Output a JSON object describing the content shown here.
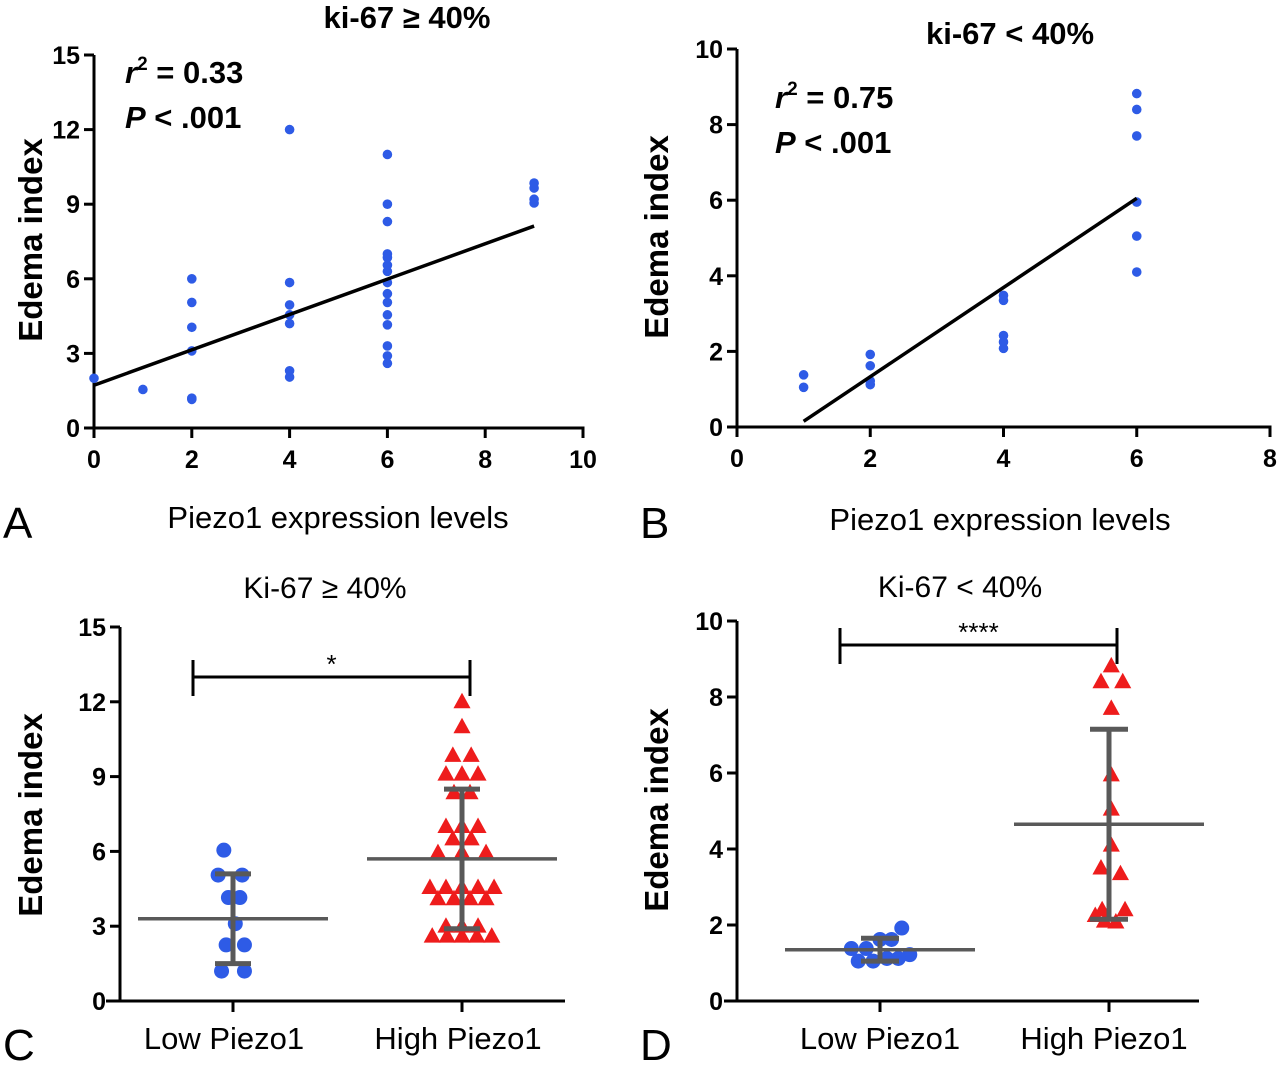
{
  "colors": {
    "blue": "#2e5be6",
    "red": "#ee1c1c",
    "axis": "#000000",
    "errbar": "#595959"
  },
  "chart_data": [
    {
      "panel": "A",
      "type": "scatter",
      "title": "ki-67 ≥ 40%",
      "xlabel": "Piezo1 expression levels",
      "ylabel": "Edema index",
      "xlim": [
        0,
        10
      ],
      "ylim": [
        0,
        15
      ],
      "xticks": [
        "0",
        "2",
        "4",
        "6",
        "8",
        "10"
      ],
      "yticks": [
        "0",
        "3",
        "6",
        "9",
        "12",
        "15"
      ],
      "stats": {
        "r2_label": "r",
        "r2_sup": "2",
        "r2_value": " = 0.33",
        "p_label": "P",
        "p_value": " < .001"
      },
      "points": [
        [
          0,
          2.0
        ],
        [
          1,
          1.55
        ],
        [
          2,
          1.15
        ],
        [
          2,
          1.2
        ],
        [
          2,
          3.1
        ],
        [
          2,
          4.05
        ],
        [
          2,
          5.05
        ],
        [
          2,
          6.0
        ],
        [
          4,
          2.05
        ],
        [
          4,
          2.3
        ],
        [
          4,
          4.2
        ],
        [
          4,
          4.55
        ],
        [
          4,
          4.95
        ],
        [
          4,
          5.85
        ],
        [
          4,
          12.0
        ],
        [
          6,
          2.6
        ],
        [
          6,
          2.9
        ],
        [
          6,
          3.3
        ],
        [
          6,
          4.15
        ],
        [
          6,
          4.55
        ],
        [
          6,
          5.05
        ],
        [
          6,
          5.4
        ],
        [
          6,
          5.85
        ],
        [
          6,
          6.3
        ],
        [
          6,
          6.55
        ],
        [
          6,
          6.85
        ],
        [
          6,
          7.0
        ],
        [
          6,
          8.3
        ],
        [
          6,
          9.0
        ],
        [
          6,
          11.0
        ],
        [
          9,
          9.05
        ],
        [
          9,
          9.2
        ],
        [
          9,
          9.65
        ],
        [
          9,
          9.85
        ]
      ],
      "fit": [
        [
          0,
          1.72
        ],
        [
          9,
          8.12
        ]
      ]
    },
    {
      "panel": "B",
      "type": "scatter",
      "title": "ki-67 < 40%",
      "xlabel": "Piezo1 expression levels",
      "ylabel": "Edema index",
      "xlim": [
        0,
        8
      ],
      "ylim": [
        0,
        10
      ],
      "xticks": [
        "0",
        "2",
        "4",
        "6",
        "8"
      ],
      "yticks": [
        "0",
        "2",
        "4",
        "6",
        "8",
        "10"
      ],
      "stats": {
        "r2_label": "r",
        "r2_sup": "2",
        "r2_value": " = 0.75",
        "p_label": "P",
        "p_value": " < .001"
      },
      "points": [
        [
          1,
          1.05
        ],
        [
          1,
          1.38
        ],
        [
          2,
          1.12
        ],
        [
          2,
          1.22
        ],
        [
          2,
          1.62
        ],
        [
          2,
          1.92
        ],
        [
          4,
          2.08
        ],
        [
          4,
          2.25
        ],
        [
          4,
          2.42
        ],
        [
          4,
          3.35
        ],
        [
          4,
          3.48
        ],
        [
          6,
          4.1
        ],
        [
          6,
          5.05
        ],
        [
          6,
          5.95
        ],
        [
          6,
          7.7
        ],
        [
          6,
          8.4
        ],
        [
          6,
          8.82
        ]
      ],
      "fit": [
        [
          1,
          0.15
        ],
        [
          6,
          6.05
        ]
      ]
    },
    {
      "panel": "C",
      "type": "scatter",
      "title": "Ki-67 ≥ 40%",
      "xlabel": "",
      "ylabel": "Edema index",
      "categories": [
        "Low Piezo1",
        "High Piezo1"
      ],
      "ylim": [
        0,
        15
      ],
      "yticks": [
        "0",
        "3",
        "6",
        "9",
        "12",
        "15"
      ],
      "significance": "*",
      "groups": [
        {
          "name": "Low Piezo1",
          "marker": "circle",
          "mean": 3.3,
          "sd_low": 1.5,
          "sd_high": 5.1,
          "points": [
            [
              -0.08,
              6.05
            ],
            [
              -0.13,
              5.05
            ],
            [
              0.08,
              5.05
            ],
            [
              -0.04,
              4.15
            ],
            [
              0.06,
              4.15
            ],
            [
              0.02,
              3.1
            ],
            [
              -0.06,
              2.25
            ],
            [
              0.1,
              2.25
            ],
            [
              -0.1,
              1.2
            ],
            [
              0.1,
              1.2
            ]
          ]
        },
        {
          "name": "High Piezo1",
          "marker": "triangle",
          "mean": 5.7,
          "sd_low": 2.9,
          "sd_high": 8.5,
          "points": [
            [
              0.0,
              12.0
            ],
            [
              0.0,
              11.0
            ],
            [
              -0.08,
              9.85
            ],
            [
              0.08,
              9.85
            ],
            [
              -0.14,
              9.1
            ],
            [
              0.0,
              9.1
            ],
            [
              0.14,
              9.1
            ],
            [
              -0.07,
              8.35
            ],
            [
              0.07,
              8.35
            ],
            [
              -0.14,
              7.0
            ],
            [
              0.0,
              7.0
            ],
            [
              0.14,
              7.0
            ],
            [
              -0.08,
              6.5
            ],
            [
              0.08,
              6.5
            ],
            [
              -0.21,
              5.95
            ],
            [
              0.0,
              5.95
            ],
            [
              0.21,
              5.95
            ],
            [
              -0.28,
              4.55
            ],
            [
              -0.14,
              4.55
            ],
            [
              0.0,
              4.55
            ],
            [
              0.14,
              4.55
            ],
            [
              0.28,
              4.55
            ],
            [
              -0.21,
              4.1
            ],
            [
              -0.07,
              4.1
            ],
            [
              0.07,
              4.1
            ],
            [
              0.21,
              4.1
            ],
            [
              -0.14,
              3.0
            ],
            [
              0.0,
              3.0
            ],
            [
              0.14,
              3.0
            ],
            [
              -0.26,
              2.6
            ],
            [
              -0.13,
              2.6
            ],
            [
              0.0,
              2.6
            ],
            [
              0.13,
              2.6
            ],
            [
              0.26,
              2.6
            ]
          ]
        }
      ]
    },
    {
      "panel": "D",
      "type": "scatter",
      "title": "Ki-67 < 40%",
      "xlabel": "",
      "ylabel": "Edema index",
      "categories": [
        "Low Piezo1",
        "High Piezo1"
      ],
      "ylim": [
        0,
        10
      ],
      "yticks": [
        "0",
        "2",
        "4",
        "6",
        "8",
        "10"
      ],
      "significance": "****",
      "groups": [
        {
          "name": "Low Piezo1",
          "marker": "circle",
          "mean": 1.35,
          "sd_low": 1.05,
          "sd_high": 1.65,
          "points": [
            [
              -0.25,
              1.38
            ],
            [
              -0.12,
              1.38
            ],
            [
              0.0,
              1.62
            ],
            [
              0.1,
              1.62
            ],
            [
              0.19,
              1.92
            ],
            [
              0.26,
              1.22
            ],
            [
              -0.19,
              1.05
            ],
            [
              -0.06,
              1.05
            ],
            [
              0.06,
              1.12
            ],
            [
              0.16,
              1.12
            ]
          ]
        },
        {
          "name": "High Piezo1",
          "marker": "triangle",
          "mean": 4.65,
          "sd_low": 2.15,
          "sd_high": 7.15,
          "points": [
            [
              0.02,
              8.82
            ],
            [
              -0.07,
              8.4
            ],
            [
              0.12,
              8.4
            ],
            [
              0.02,
              7.7
            ],
            [
              0.02,
              5.95
            ],
            [
              0.02,
              5.05
            ],
            [
              0.02,
              4.1
            ],
            [
              -0.07,
              3.5
            ],
            [
              0.1,
              3.35
            ],
            [
              -0.06,
              2.4
            ],
            [
              0.14,
              2.4
            ],
            [
              -0.12,
              2.25
            ],
            [
              -0.04,
              2.1
            ],
            [
              0.06,
              2.08
            ]
          ]
        }
      ]
    }
  ]
}
